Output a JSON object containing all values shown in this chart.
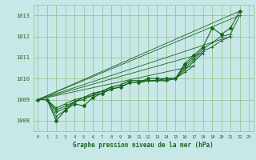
{
  "title": "Graphe pression niveau de la mer (hPa)",
  "bg_color": "#c8e8e8",
  "grid_color": "#a0c8a0",
  "line_color": "#1a6620",
  "xlim": [
    -0.5,
    23.5
  ],
  "ylim": [
    1007.5,
    1013.5
  ],
  "xticks": [
    0,
    1,
    2,
    3,
    4,
    5,
    6,
    7,
    8,
    9,
    10,
    11,
    12,
    13,
    14,
    15,
    16,
    17,
    18,
    19,
    20,
    21,
    22,
    23
  ],
  "yticks": [
    1008,
    1009,
    1010,
    1011,
    1012,
    1013
  ],
  "series": [
    [
      1009.0,
      1009.0,
      1008.0,
      1008.5,
      1008.8,
      1008.7,
      1009.1,
      1009.3,
      1009.5,
      1009.6,
      1009.8,
      1009.8,
      1010.0,
      1010.0,
      1010.0,
      1010.0,
      1010.7,
      1011.1,
      1011.5,
      1012.4,
      1012.1,
      1012.4,
      1013.2,
      null
    ],
    [
      1009.0,
      1009.0,
      1008.2,
      1008.5,
      1008.9,
      1009.0,
      1009.2,
      1009.4,
      1009.6,
      1009.7,
      1009.9,
      1009.9,
      1009.9,
      1009.9,
      1009.9,
      1010.0,
      1010.6,
      1011.0,
      1011.4,
      1011.7,
      1012.0,
      1012.1,
      1013.0,
      null
    ],
    [
      1009.0,
      1009.0,
      1008.4,
      1008.6,
      1008.9,
      1009.1,
      1009.3,
      1009.4,
      1009.6,
      1009.7,
      1009.9,
      1009.9,
      1009.9,
      1009.9,
      1009.9,
      1010.0,
      1010.5,
      1010.9,
      1011.3,
      1011.5,
      1011.8,
      1012.0,
      null,
      null
    ],
    [
      1009.0,
      1009.0,
      1008.5,
      1008.7,
      1008.9,
      1009.1,
      1009.3,
      1009.4,
      1009.5,
      1009.6,
      1009.8,
      1009.8,
      1009.9,
      1009.9,
      1010.0,
      1010.0,
      1010.4,
      1010.8,
      1011.2,
      null,
      null,
      null,
      null,
      null
    ],
    [
      1009.0,
      1009.0,
      1008.6,
      1008.8,
      1009.0,
      1009.1,
      1009.2,
      1009.3,
      1009.5,
      1009.6,
      1009.8,
      1009.8,
      1009.9,
      1009.9,
      1010.0,
      1010.0,
      1010.3,
      1010.6,
      null,
      null,
      null,
      null,
      null,
      null
    ]
  ],
  "main_series_idx": 0
}
